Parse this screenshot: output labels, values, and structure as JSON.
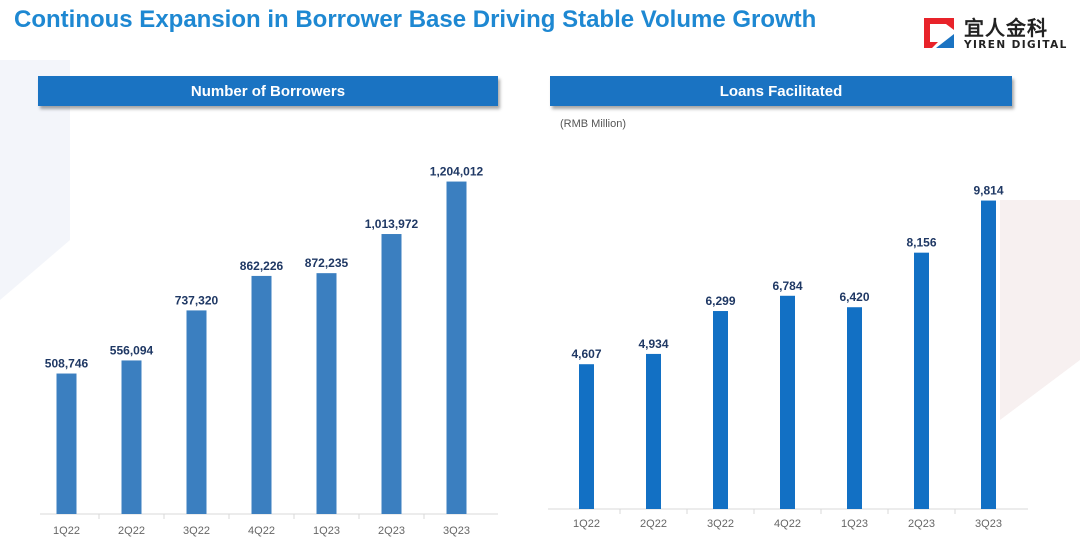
{
  "page": {
    "title": "Continous Expansion in Borrower Base Driving Stable Volume Growth"
  },
  "logo": {
    "name_cn": "宜人金科",
    "name_en": "YIREN DIGITAL"
  },
  "colors": {
    "title": "#1e88d2",
    "header_bg": "#1a73c2",
    "borrowers_bar": "#3b7fc0",
    "loans_bar": "#1270c4",
    "value_label": "#1f3864",
    "axis_label": "#666666"
  },
  "chart_data": [
    {
      "type": "bar",
      "title": "Number of Borrowers",
      "categories": [
        "1Q22",
        "2Q22",
        "3Q22",
        "4Q22",
        "1Q23",
        "2Q23",
        "3Q23"
      ],
      "values": [
        508746,
        556094,
        737320,
        862226,
        872235,
        1013972,
        1204012
      ],
      "labels": [
        "508,746",
        "556,094",
        "737,320",
        "862,226",
        "872,235",
        "1,013,972",
        "1,204,012"
      ],
      "xlabel": "",
      "ylabel": "",
      "ylim": [
        0,
        1340000
      ]
    },
    {
      "type": "bar",
      "title": "Loans Facilitated",
      "unit": "(RMB Million)",
      "categories": [
        "1Q22",
        "2Q22",
        "3Q22",
        "4Q22",
        "1Q23",
        "2Q23",
        "3Q23"
      ],
      "values": [
        4607,
        4934,
        6299,
        6784,
        6420,
        8156,
        9814
      ],
      "labels": [
        "4,607",
        "4,934",
        "6,299",
        "6,784",
        "6,420",
        "8,156",
        "9,814"
      ],
      "xlabel": "",
      "ylabel": "",
      "ylim": [
        0,
        10500
      ]
    }
  ]
}
